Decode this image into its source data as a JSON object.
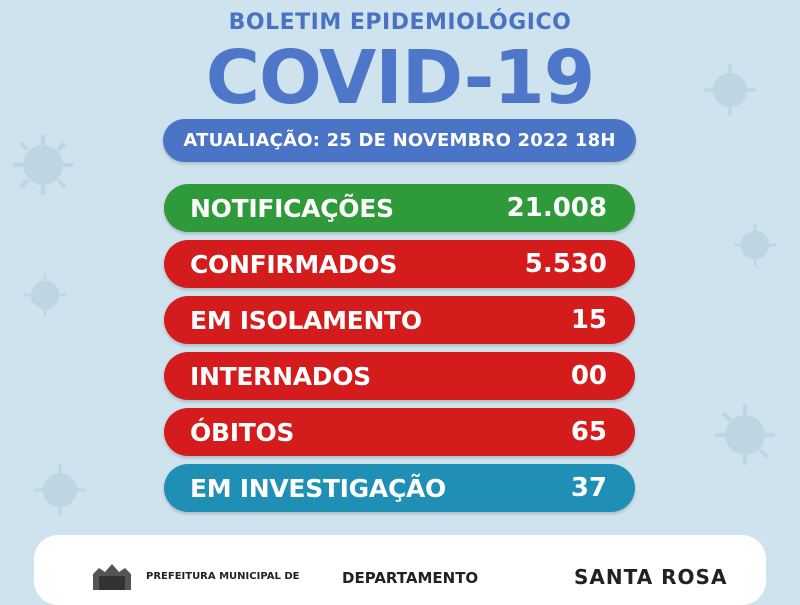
{
  "header": {
    "subtitle": "BOLETIM EPIDEMIOLÓGICO",
    "title": "COVID-19"
  },
  "update": {
    "text": "ATUALIAÇÃO: 25 DE NOVEMBRO 2022 18H"
  },
  "stats": [
    {
      "label": "NOTIFICAÇÕES",
      "value": "21.008",
      "color": "#2f9a3a"
    },
    {
      "label": "CONFIRMADOS",
      "value": "5.530",
      "color": "#d41c1c"
    },
    {
      "label": "EM ISOLAMENTO",
      "value": "15",
      "color": "#d41c1c"
    },
    {
      "label": "INTERNADOS",
      "value": "00",
      "color": "#d41c1c"
    },
    {
      "label": "ÓBITOS",
      "value": "65",
      "color": "#d41c1c"
    },
    {
      "label": "EM INVESTIGAÇÃO",
      "value": "37",
      "color": "#1f8fb5"
    }
  ],
  "footer": {
    "prefeitura": "PREFEITURA MUNICIPAL DE",
    "department": "DEPARTAMENTO",
    "brand": "SANTA ROSA"
  },
  "colors": {
    "background": "#cfe3ee",
    "header": "#4e76c9",
    "update_pill": "#4a74c6"
  }
}
